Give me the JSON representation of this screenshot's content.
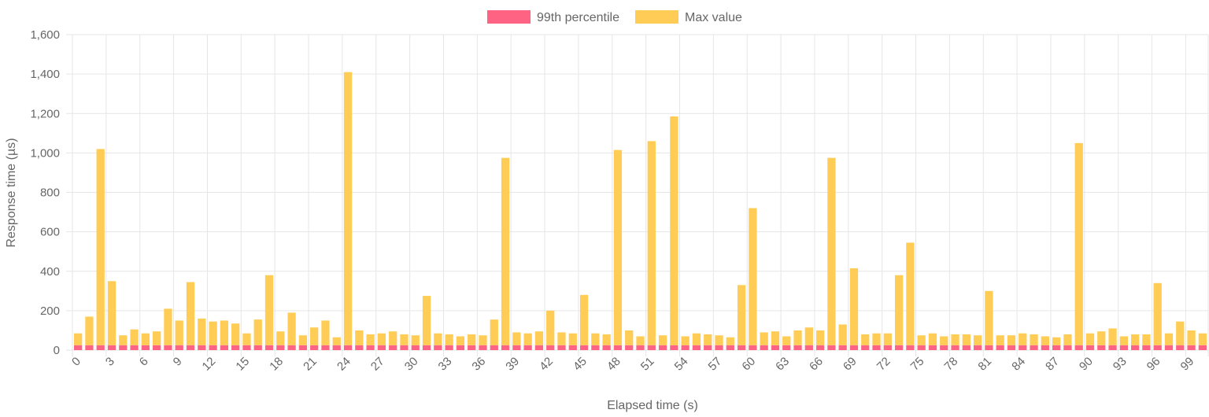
{
  "chart_data": {
    "type": "bar",
    "stacked": true,
    "xlabel": "Elapsed time (s)",
    "ylabel": "Response time (µs)",
    "ylim": [
      0,
      1600
    ],
    "yticks": [
      0,
      200,
      400,
      600,
      800,
      1000,
      1200,
      1400,
      1600
    ],
    "ytick_labels": [
      "0",
      "200",
      "400",
      "600",
      "800",
      "1,000",
      "1,200",
      "1,400",
      "1,600"
    ],
    "xtick_labels": [
      "0",
      "3",
      "6",
      "9",
      "12",
      "15",
      "18",
      "21",
      "24",
      "27",
      "30",
      "33",
      "36",
      "39",
      "42",
      "45",
      "48",
      "51",
      "54",
      "57",
      "60",
      "63",
      "66",
      "69",
      "72",
      "75",
      "78",
      "81",
      "84",
      "87",
      "90",
      "93",
      "96",
      "99"
    ],
    "grid": true,
    "legend_position": "top",
    "x": [
      0,
      1,
      2,
      3,
      4,
      5,
      6,
      7,
      8,
      9,
      10,
      11,
      12,
      13,
      14,
      15,
      16,
      17,
      18,
      19,
      20,
      21,
      22,
      23,
      24,
      25,
      26,
      27,
      28,
      29,
      30,
      31,
      32,
      33,
      34,
      35,
      36,
      37,
      38,
      39,
      40,
      41,
      42,
      43,
      44,
      45,
      46,
      47,
      48,
      49,
      50,
      51,
      52,
      53,
      54,
      55,
      56,
      57,
      58,
      59,
      60,
      61,
      62,
      63,
      64,
      65,
      66,
      67,
      68,
      69,
      70,
      71,
      72,
      73,
      74,
      75,
      76,
      77,
      78,
      79,
      80,
      81,
      82,
      83,
      84,
      85,
      86,
      87,
      88,
      89,
      90,
      91,
      92,
      93,
      94,
      95,
      96,
      97,
      98,
      99,
      100
    ],
    "series": [
      {
        "name": "99th percentile",
        "color": "#ff6384",
        "values": [
          25,
          25,
          25,
          25,
          25,
          25,
          25,
          25,
          25,
          25,
          25,
          25,
          25,
          25,
          25,
          25,
          25,
          25,
          25,
          25,
          25,
          25,
          25,
          25,
          25,
          25,
          25,
          25,
          25,
          25,
          25,
          25,
          25,
          25,
          25,
          25,
          25,
          25,
          25,
          25,
          25,
          25,
          25,
          25,
          25,
          25,
          25,
          25,
          25,
          25,
          25,
          25,
          25,
          25,
          25,
          25,
          25,
          25,
          25,
          25,
          25,
          25,
          25,
          25,
          25,
          25,
          25,
          25,
          25,
          25,
          25,
          25,
          25,
          25,
          25,
          25,
          25,
          25,
          25,
          25,
          25,
          25,
          25,
          25,
          25,
          25,
          25,
          25,
          25,
          25,
          25,
          25,
          25,
          25,
          25,
          25,
          25,
          25,
          25,
          25,
          25
        ]
      },
      {
        "name": "Max value",
        "color": "#ffcd56",
        "values": [
          60,
          145,
          995,
          325,
          50,
          80,
          60,
          70,
          185,
          125,
          320,
          135,
          120,
          125,
          110,
          60,
          130,
          355,
          70,
          165,
          50,
          90,
          125,
          40,
          1385,
          75,
          55,
          60,
          70,
          55,
          50,
          250,
          60,
          55,
          45,
          55,
          50,
          130,
          950,
          65,
          60,
          70,
          175,
          65,
          60,
          255,
          60,
          55,
          990,
          75,
          45,
          1035,
          50,
          1160,
          45,
          60,
          55,
          50,
          40,
          305,
          695,
          65,
          70,
          45,
          75,
          90,
          75,
          950,
          105,
          390,
          55,
          60,
          60,
          355,
          520,
          50,
          60,
          45,
          55,
          55,
          50,
          275,
          50,
          50,
          60,
          55,
          45,
          40,
          55,
          1025,
          60,
          70,
          85,
          45,
          55,
          55,
          315,
          60,
          120,
          75,
          60
        ]
      }
    ]
  }
}
